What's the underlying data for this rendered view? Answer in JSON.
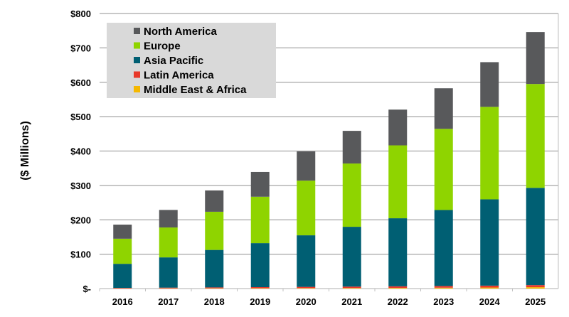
{
  "chart_data": {
    "type": "bar",
    "stacked": true,
    "title": "",
    "xlabel": "",
    "ylabel": "($ Millions)",
    "ylim": [
      0,
      800
    ],
    "yticks": [
      0,
      100,
      200,
      300,
      400,
      500,
      600,
      700,
      800
    ],
    "ytick_labels": [
      "$-",
      "$100",
      "$200",
      "$300",
      "$400",
      "$500",
      "$600",
      "$700",
      "$800"
    ],
    "grid": true,
    "legend_position": "top-left",
    "categories": [
      "2016",
      "2017",
      "2018",
      "2019",
      "2020",
      "2021",
      "2022",
      "2023",
      "2024",
      "2025"
    ],
    "series": [
      {
        "name": "Middle East & Africa",
        "color": "#f5b800",
        "values": [
          0.5,
          0.7,
          0.9,
          1.1,
          1.4,
          1.7,
          2,
          2.5,
          3,
          4
        ]
      },
      {
        "name": "Latin America",
        "color": "#e8392a",
        "values": [
          1.5,
          2,
          2.5,
          3,
          3.5,
          4,
          4.5,
          5,
          5.5,
          6
        ]
      },
      {
        "name": "Asia Pacific",
        "color": "#005f73",
        "values": [
          70,
          88,
          109,
          128,
          150,
          174,
          198,
          221,
          251,
          283
        ]
      },
      {
        "name": "Europe",
        "color": "#8fd400",
        "values": [
          73,
          87,
          111,
          135,
          159,
          184,
          212,
          236,
          269,
          302
        ]
      },
      {
        "name": "North America",
        "color": "#58595b",
        "values": [
          41,
          51,
          62,
          72,
          85,
          95,
          104,
          118,
          130,
          151
        ]
      }
    ]
  }
}
